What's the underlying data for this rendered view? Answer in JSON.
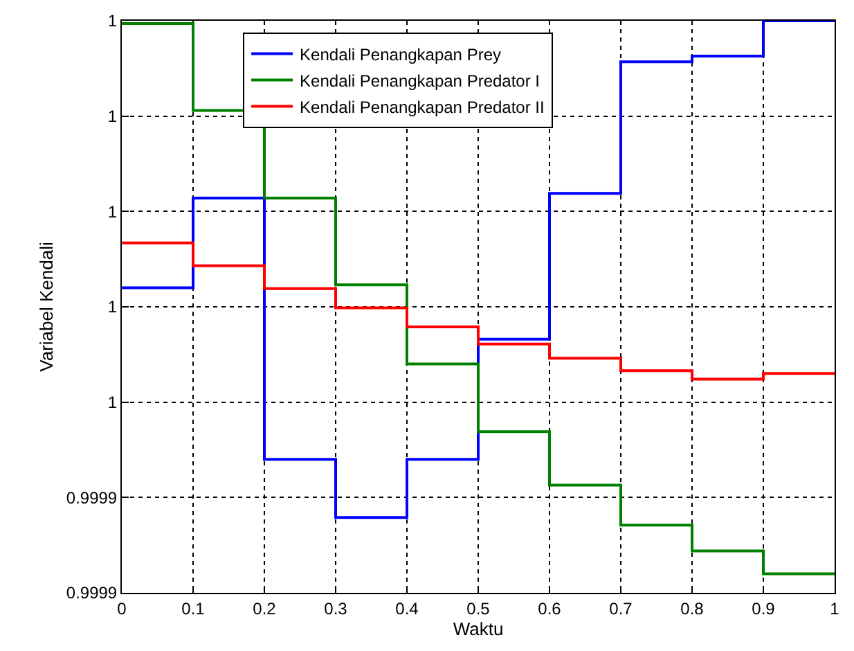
{
  "chart_data": {
    "type": "step",
    "xlabel": "Waktu",
    "ylabel": "Variabel Kendali",
    "x": [
      0,
      0.1,
      0.2,
      0.3,
      0.4,
      0.5,
      0.6,
      0.7,
      0.8,
      0.9,
      1.0
    ],
    "series": [
      {
        "name": "Kendali Penangkapan Prey",
        "color": "#0000ff",
        "values": [
          0.999972,
          0.9999814,
          0.999954,
          0.9999479,
          0.999954,
          0.9999666,
          0.9999819,
          0.9999957,
          0.9999963,
          1.0,
          1.0
        ]
      },
      {
        "name": "Kendali Penangkapan Predator I",
        "color": "#008000",
        "values": [
          0.9999997,
          0.9999906,
          0.9999814,
          0.9999723,
          0.999964,
          0.9999569,
          0.9999513,
          0.9999471,
          0.9999444,
          0.999942,
          0.999942
        ]
      },
      {
        "name": "Kendali Penangkapan Predator II",
        "color": "#ff0000",
        "values": [
          0.9999767,
          0.9999743,
          0.9999719,
          0.9999699,
          0.9999679,
          0.9999661,
          0.9999646,
          0.9999633,
          0.9999624,
          0.999963,
          0.999963
        ]
      }
    ],
    "xlim": [
      0,
      1
    ],
    "xticks": [
      0,
      0.1,
      0.2,
      0.3,
      0.4,
      0.5,
      0.6,
      0.7,
      0.8,
      0.9,
      1
    ],
    "ylim": [
      0.99994,
      1.0
    ],
    "yticks": [
      {
        "value": 0.99994,
        "label": "0.9999"
      },
      {
        "value": 0.99995,
        "label": "0.9999"
      },
      {
        "value": 0.99996,
        "label": "1"
      },
      {
        "value": 0.99997,
        "label": "1"
      },
      {
        "value": 0.99998,
        "label": "1"
      },
      {
        "value": 0.99999,
        "label": "1"
      },
      {
        "value": 1.0,
        "label": "1"
      }
    ],
    "grid": true,
    "legend": "top",
    "line_style": "solid"
  }
}
